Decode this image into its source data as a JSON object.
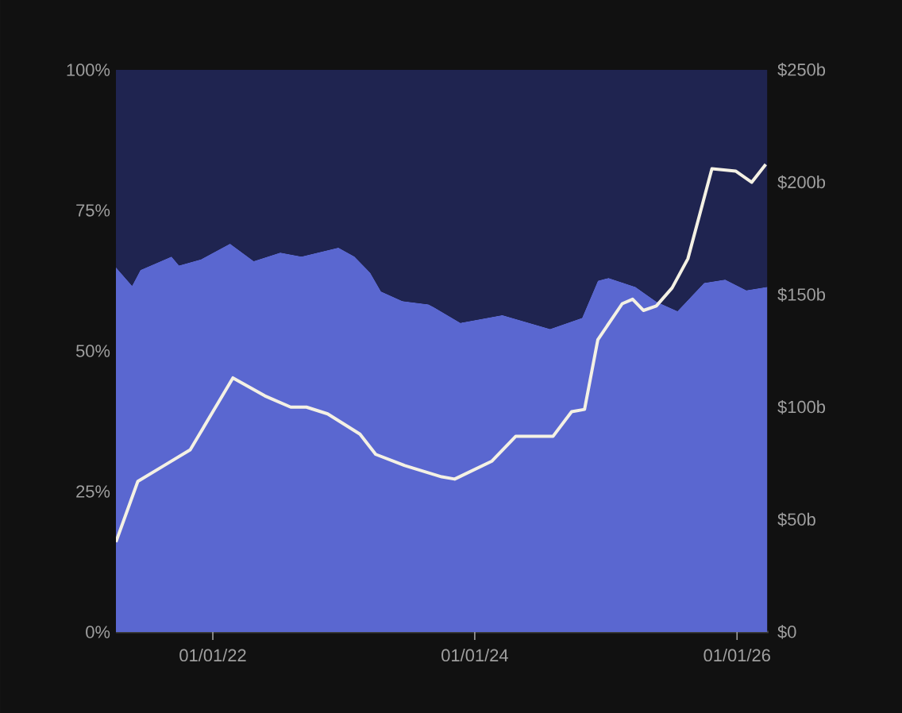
{
  "chart_data": {
    "type": "area",
    "stacked": true,
    "x": [
      "2021-04-06",
      "2021-05-21",
      "2021-06-13",
      "2021-09-08",
      "2021-09-29",
      "2021-11-29",
      "2022-02-18",
      "2022-04-25",
      "2022-07-08",
      "2022-09-05",
      "2022-12-17",
      "2023-01-31",
      "2023-03-16",
      "2023-04-15",
      "2023-06-13",
      "2023-08-25",
      "2023-09-09",
      "2023-11-22",
      "2024-03-18",
      "2024-07-29",
      "2024-10-26",
      "2024-12-09",
      "2025-01-08",
      "2025-03-24",
      "2025-05-21",
      "2025-07-19",
      "2025-10-01",
      "2025-11-29",
      "2026-01-27",
      "2026-03-26"
    ],
    "series": [
      {
        "color": "#5a67d0",
        "values": [
          64.9,
          61.6,
          64.4,
          66.8,
          65.2,
          66.3,
          69.1,
          66.0,
          67.5,
          66.8,
          68.4,
          66.8,
          63.9,
          60.6,
          58.9,
          58.3,
          57.8,
          55.0,
          56.4,
          53.9,
          55.9,
          62.5,
          63.0,
          61.4,
          58.8,
          57.1,
          62.1,
          62.7,
          60.8,
          61.4
        ]
      },
      {
        "color": "#1f2450",
        "values": [
          35.1,
          38.4,
          35.6,
          33.2,
          34.8,
          33.7,
          30.9,
          34.0,
          32.5,
          33.2,
          31.6,
          33.2,
          36.1,
          39.4,
          41.1,
          41.7,
          42.2,
          45.0,
          43.6,
          46.1,
          44.1,
          37.5,
          37.0,
          38.6,
          41.2,
          42.9,
          37.9,
          37.3,
          39.2,
          38.6
        ]
      },
      {
        "type": "line",
        "axis": "y2",
        "color": "#f4f1e4",
        "x": [
          "2021-04-06",
          "2021-06-06",
          "2021-08-18",
          "2021-10-30",
          "2022-01-05",
          "2022-02-26",
          "2022-05-26",
          "2022-08-06",
          "2022-09-19",
          "2022-11-17",
          "2023-02-15",
          "2023-03-31",
          "2023-06-20",
          "2023-10-01",
          "2023-11-06",
          "2024-02-18",
          "2024-04-24",
          "2024-08-06",
          "2024-09-27",
          "2024-11-02",
          "2024-12-09",
          "2025-02-15",
          "2025-03-16",
          "2025-04-15",
          "2025-05-21",
          "2025-07-04",
          "2025-08-17",
          "2025-10-23",
          "2025-12-28",
          "2026-02-11",
          "2026-03-22"
        ],
        "values": [
          40,
          67,
          74,
          81,
          99,
          113,
          105,
          100,
          100,
          97,
          88,
          79,
          74,
          69,
          68,
          76,
          87,
          87,
          98,
          99,
          130,
          146,
          148,
          143,
          145,
          153,
          166,
          206,
          205,
          200,
          208
        ]
      }
    ],
    "xlim": [
      "2021-04-06",
      "2026-03-30"
    ],
    "xticks": [
      {
        "value": "2022-01-01",
        "label": "01/01/22"
      },
      {
        "value": "2024-01-01",
        "label": "01/01/24"
      },
      {
        "value": "2026-01-01",
        "label": "01/01/26"
      }
    ],
    "ylim": [
      0,
      100
    ],
    "yticks": [
      {
        "value": 0,
        "label": "0%"
      },
      {
        "value": 25,
        "label": "25%"
      },
      {
        "value": 50,
        "label": "50%"
      },
      {
        "value": 75,
        "label": "75%"
      },
      {
        "value": 100,
        "label": "100%"
      }
    ],
    "y2lim": [
      0,
      250
    ],
    "y2ticks": [
      {
        "value": 0,
        "label": "$0"
      },
      {
        "value": 50,
        "label": "$50b"
      },
      {
        "value": 100,
        "label": "$100b"
      },
      {
        "value": 150,
        "label": "$150b"
      },
      {
        "value": 200,
        "label": "$200b"
      },
      {
        "value": 250,
        "label": "$250b"
      }
    ]
  }
}
